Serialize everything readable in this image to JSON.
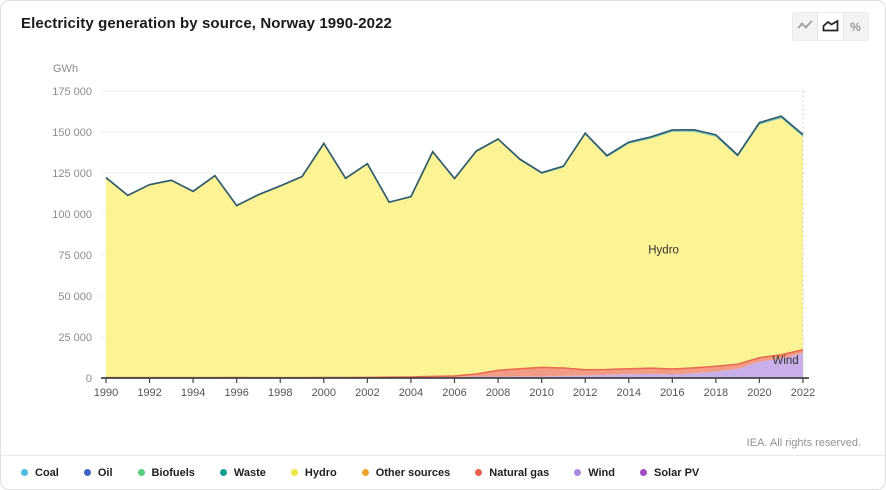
{
  "header": {
    "title": "Electricity generation by source, Norway 1990-2022"
  },
  "toolbar": {
    "buttons": [
      {
        "name": "line-chart-toggle",
        "selected": false
      },
      {
        "name": "area-chart-toggle",
        "selected": true
      },
      {
        "name": "percent-toggle",
        "selected": false
      }
    ]
  },
  "chart_data": {
    "type": "area",
    "stacking": "normal",
    "title": "Electricity generation by source, Norway 1990-2022",
    "unit": "GWh",
    "ylabel": "GWh",
    "ylim": [
      0,
      175000
    ],
    "grid": true,
    "ytick_values": [
      0,
      25000,
      50000,
      75000,
      100000,
      125000,
      150000,
      175000
    ],
    "ytick_labels": [
      "0",
      "25 000",
      "50 000",
      "75 000",
      "100 000",
      "125 000",
      "150 000",
      "175 000"
    ],
    "xticks": [
      1990,
      1992,
      1994,
      1996,
      1998,
      2000,
      2002,
      2004,
      2006,
      2008,
      2010,
      2012,
      2014,
      2016,
      2018,
      2020,
      2022
    ],
    "years": [
      1990,
      1991,
      1992,
      1993,
      1994,
      1995,
      1996,
      1997,
      1998,
      1999,
      2000,
      2001,
      2002,
      2003,
      2004,
      2005,
      2006,
      2007,
      2008,
      2009,
      2010,
      2011,
      2012,
      2013,
      2014,
      2015,
      2016,
      2017,
      2018,
      2019,
      2020,
      2021,
      2022
    ],
    "stack_order_note": "series listed bottom-to-top as stacked",
    "series": [
      {
        "name": "Solar PV",
        "fill": "#b973d6",
        "values": [
          0,
          0,
          0,
          0,
          0,
          0,
          0,
          0,
          0,
          0,
          0,
          0,
          0,
          0,
          0,
          0,
          0,
          0,
          0,
          0,
          0,
          0,
          0,
          0,
          5,
          10,
          15,
          20,
          30,
          50,
          100,
          150,
          250
        ]
      },
      {
        "name": "Wind",
        "fill": "#c9afe9",
        "values": [
          10,
          10,
          10,
          10,
          10,
          10,
          10,
          11,
          15,
          25,
          31,
          45,
          75,
          218,
          260,
          499,
          637,
          892,
          917,
          977,
          879,
          1283,
          1556,
          1886,
          2216,
          2518,
          2115,
          2850,
          3877,
          5532,
          9869,
          11768,
          14810
        ]
      },
      {
        "name": "Natural gas",
        "fill": "#f29b85",
        "line": "#e8694c",
        "values": [
          210,
          210,
          190,
          200,
          200,
          210,
          330,
          230,
          230,
          230,
          245,
          230,
          290,
          330,
          370,
          470,
          570,
          1580,
          3710,
          4680,
          5590,
          4790,
          3480,
          3280,
          3390,
          3470,
          3390,
          3290,
          3280,
          2790,
          2380,
          2280,
          2180
        ]
      },
      {
        "name": "Other sources",
        "fill": "#f6c072",
        "values": [
          0,
          0,
          0,
          0,
          0,
          0,
          0,
          0,
          0,
          0,
          0,
          0,
          0,
          0,
          0,
          0,
          0,
          0,
          0,
          0,
          100,
          150,
          200,
          250,
          300,
          320,
          340,
          360,
          380,
          400,
          420,
          440,
          460
        ]
      },
      {
        "name": "Hydro",
        "fill": "#fbf394",
        "values": [
          121601,
          110752,
          117305,
          119953,
          113204,
          122767,
          104437,
          111125,
          116474,
          122148,
          142289,
          121026,
          129837,
          106172,
          109433,
          136463,
          119836,
          135275,
          140440,
          127058,
          117834,
          122089,
          143120,
          129214,
          136893,
          139508,
          144266,
          143650,
          139515,
          125953,
          141690,
          143713,
          129363
        ]
      },
      {
        "name": "Waste",
        "fill": "#6ec6bd",
        "values": [
          150,
          150,
          155,
          155,
          160,
          160,
          165,
          165,
          170,
          175,
          180,
          190,
          200,
          210,
          220,
          240,
          260,
          290,
          320,
          350,
          380,
          420,
          460,
          500,
          540,
          570,
          600,
          630,
          660,
          690,
          720,
          750,
          780
        ]
      },
      {
        "name": "Biofuels",
        "fill": "#9fe2b4",
        "values": [
          90,
          90,
          90,
          90,
          90,
          95,
          95,
          95,
          100,
          100,
          105,
          110,
          115,
          120,
          130,
          140,
          150,
          170,
          190,
          210,
          230,
          250,
          270,
          290,
          310,
          320,
          330,
          340,
          350,
          360,
          370,
          380,
          390
        ]
      },
      {
        "name": "Oil",
        "fill": "#8fa3dd",
        "values": [
          25,
          25,
          25,
          25,
          25,
          25,
          25,
          25,
          25,
          25,
          25,
          25,
          25,
          25,
          25,
          25,
          25,
          25,
          25,
          25,
          30,
          30,
          30,
          30,
          30,
          30,
          30,
          30,
          30,
          30,
          25,
          25,
          25
        ]
      },
      {
        "name": "Coal",
        "fill": "#a3dced",
        "values": [
          120,
          120,
          120,
          120,
          120,
          120,
          120,
          120,
          120,
          120,
          130,
          130,
          130,
          130,
          130,
          140,
          140,
          140,
          140,
          140,
          150,
          150,
          150,
          150,
          150,
          150,
          150,
          150,
          140,
          140,
          130,
          130,
          130
        ]
      }
    ],
    "total_line_color": "#315c6b",
    "current_year_line": 2022,
    "annotations": [
      {
        "label": "Hydro",
        "year": 2015.6,
        "gwh": 76000
      },
      {
        "label": "Wind",
        "year": 2021.2,
        "gwh": 8600
      }
    ],
    "colors": {
      "grid": "#ededed",
      "axis": "#444444",
      "tick_label": "#555555",
      "ytick_label": "#8c8c8c",
      "dotted_line": "#c4c4c4",
      "annotation": "#333333"
    }
  },
  "legend": {
    "items": [
      {
        "label": "Coal",
        "color": "#4bbde2"
      },
      {
        "label": "Oil",
        "color": "#3f62c5"
      },
      {
        "label": "Biofuels",
        "color": "#52ce7e"
      },
      {
        "label": "Waste",
        "color": "#0f9e92"
      },
      {
        "label": "Hydro",
        "color": "#f0e549"
      },
      {
        "label": "Other sources",
        "color": "#f0a22e"
      },
      {
        "label": "Natural gas",
        "color": "#e8604a"
      },
      {
        "label": "Wind",
        "color": "#a98ade"
      },
      {
        "label": "Solar PV",
        "color": "#a14cc0"
      }
    ]
  },
  "footer": {
    "copyright": "IEA. All rights reserved."
  }
}
